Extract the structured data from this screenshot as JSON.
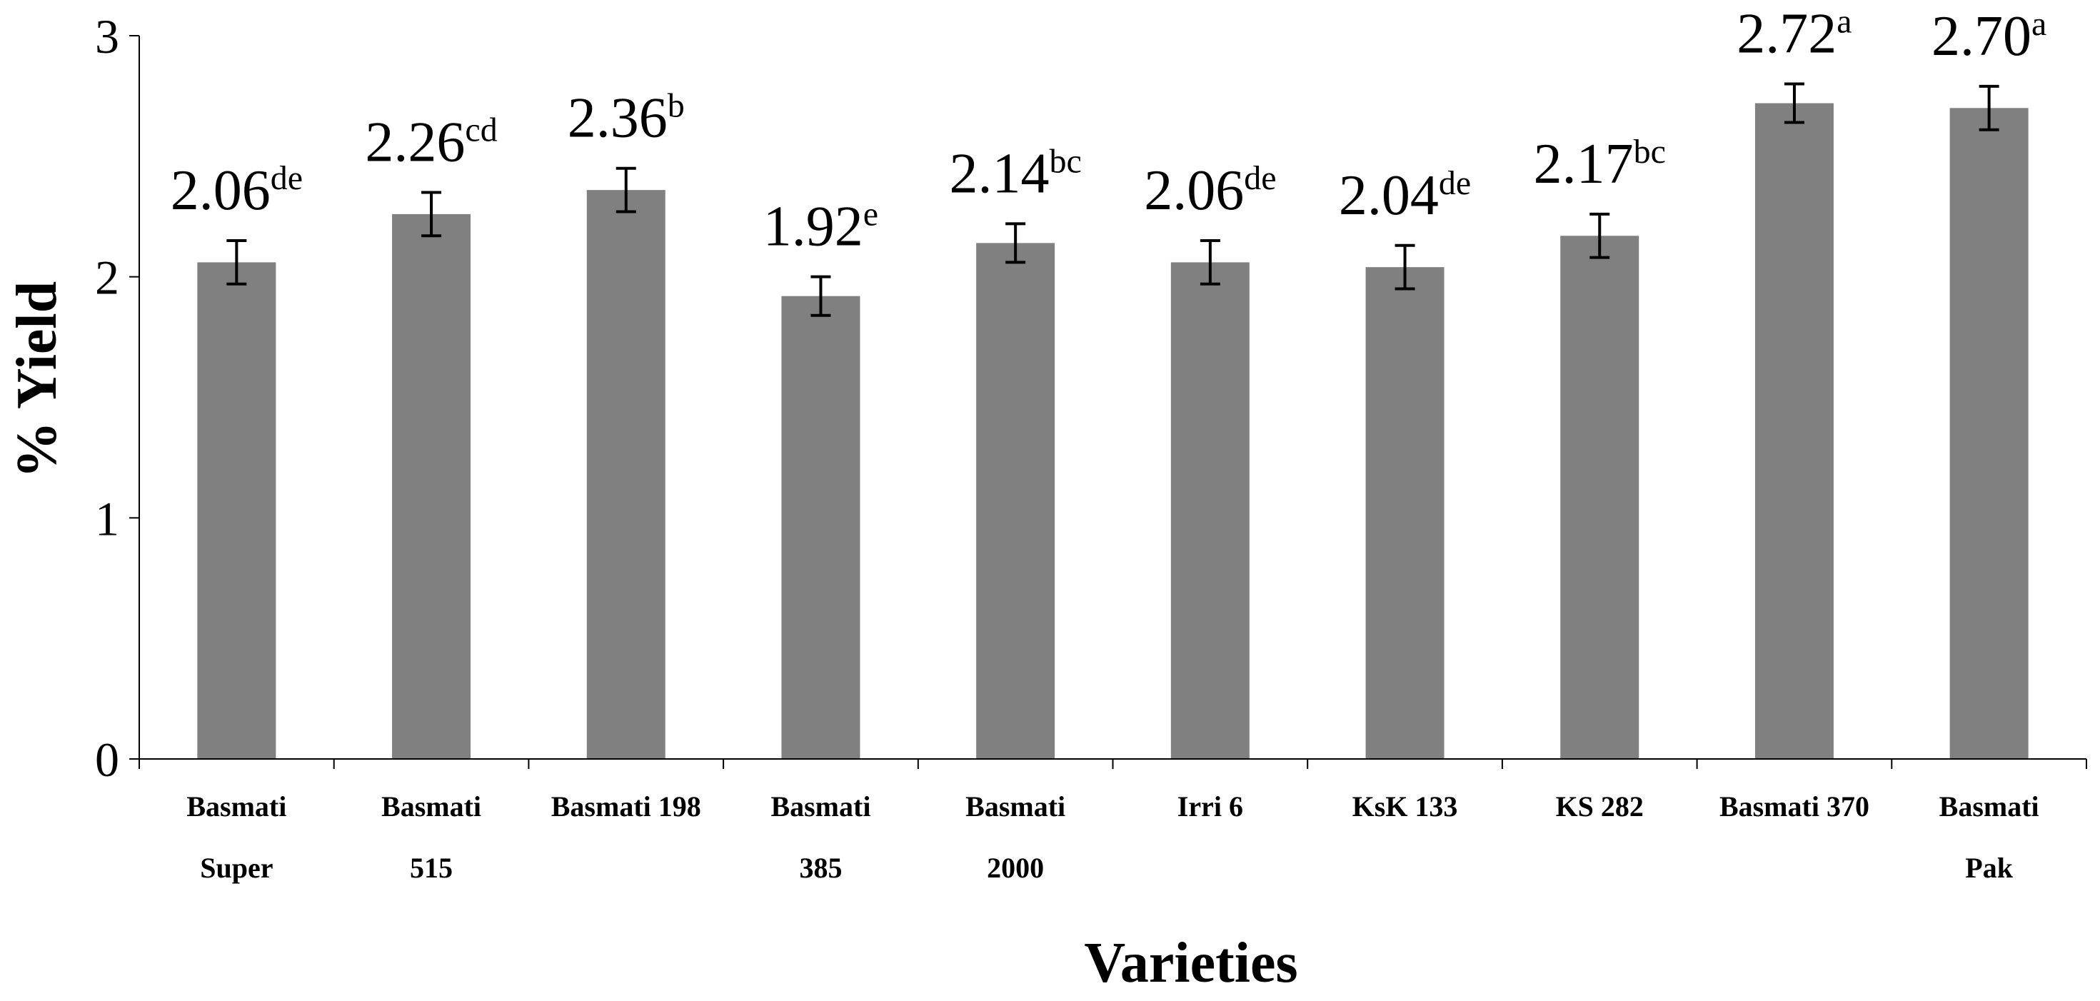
{
  "chart_data": {
    "type": "bar",
    "title": "",
    "xlabel": "Varieties",
    "ylabel": "% Yield",
    "ylim": [
      0,
      3
    ],
    "yticks": [
      "0",
      "1",
      "2",
      "3"
    ],
    "grid": false,
    "bar_color": "#808080",
    "categories": [
      [
        "Basmati",
        "Super"
      ],
      [
        "Basmati",
        "515"
      ],
      [
        "Basmati 198"
      ],
      [
        "Basmati",
        "385"
      ],
      [
        "Basmati",
        "2000"
      ],
      [
        "Irri 6"
      ],
      [
        "KsK 133"
      ],
      [
        "KS 282"
      ],
      [
        "Basmati 370"
      ],
      [
        "Basmati",
        "Pak"
      ]
    ],
    "values": [
      2.06,
      2.26,
      2.36,
      1.92,
      2.14,
      2.06,
      2.04,
      2.17,
      2.72,
      2.7
    ],
    "errors": [
      0.09,
      0.09,
      0.09,
      0.08,
      0.08,
      0.09,
      0.09,
      0.09,
      0.08,
      0.09
    ],
    "data_labels": [
      {
        "value": "2.06",
        "letters": "de"
      },
      {
        "value": "2.26",
        "letters": "cd"
      },
      {
        "value": "2.36",
        "letters": "b"
      },
      {
        "value": "1.92",
        "letters": "e"
      },
      {
        "value": "2.14",
        "letters": "bc"
      },
      {
        "value": "2.06",
        "letters": "de"
      },
      {
        "value": "2.04",
        "letters": "de"
      },
      {
        "value": "2.17",
        "letters": "bc"
      },
      {
        "value": "2.72",
        "letters": "a"
      },
      {
        "value": "2.70",
        "letters": "a"
      }
    ]
  }
}
